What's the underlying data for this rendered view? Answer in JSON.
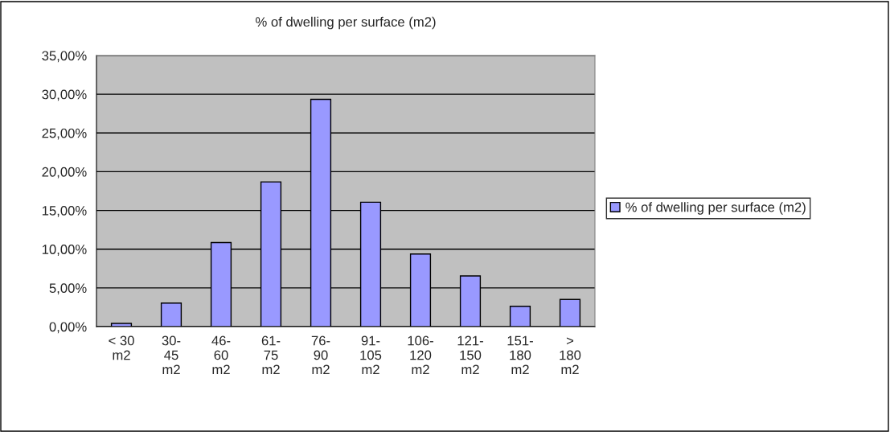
{
  "chart_data": {
    "type": "bar",
    "title": "% of dwelling per surface (m2)",
    "categories": [
      "< 30 m2",
      "30-45 m2",
      "46-60 m2",
      "61-75 m2",
      "76-90 m2",
      "91-105 m2",
      "106-120 m2",
      "121-150 m2",
      "151-180 m2",
      "> 180 m2"
    ],
    "series": [
      {
        "name": "% of dwelling per surface (m2)",
        "color": "#9999ff",
        "values": [
          0.41,
          3.04,
          10.86,
          18.68,
          29.34,
          16.06,
          9.37,
          6.54,
          2.62,
          3.5
        ]
      }
    ],
    "ylim": [
      0,
      35
    ],
    "yticks": [
      {
        "value": 0,
        "label": "0,00%"
      },
      {
        "value": 5,
        "label": "5,00%"
      },
      {
        "value": 10,
        "label": "10,00%"
      },
      {
        "value": 15,
        "label": "15,00%"
      },
      {
        "value": 20,
        "label": "20,00%"
      },
      {
        "value": 25,
        "label": "25,00%"
      },
      {
        "value": 30,
        "label": "30,00%"
      },
      {
        "value": 35,
        "label": "35,00%"
      }
    ],
    "grid": "y",
    "legend": "right"
  }
}
